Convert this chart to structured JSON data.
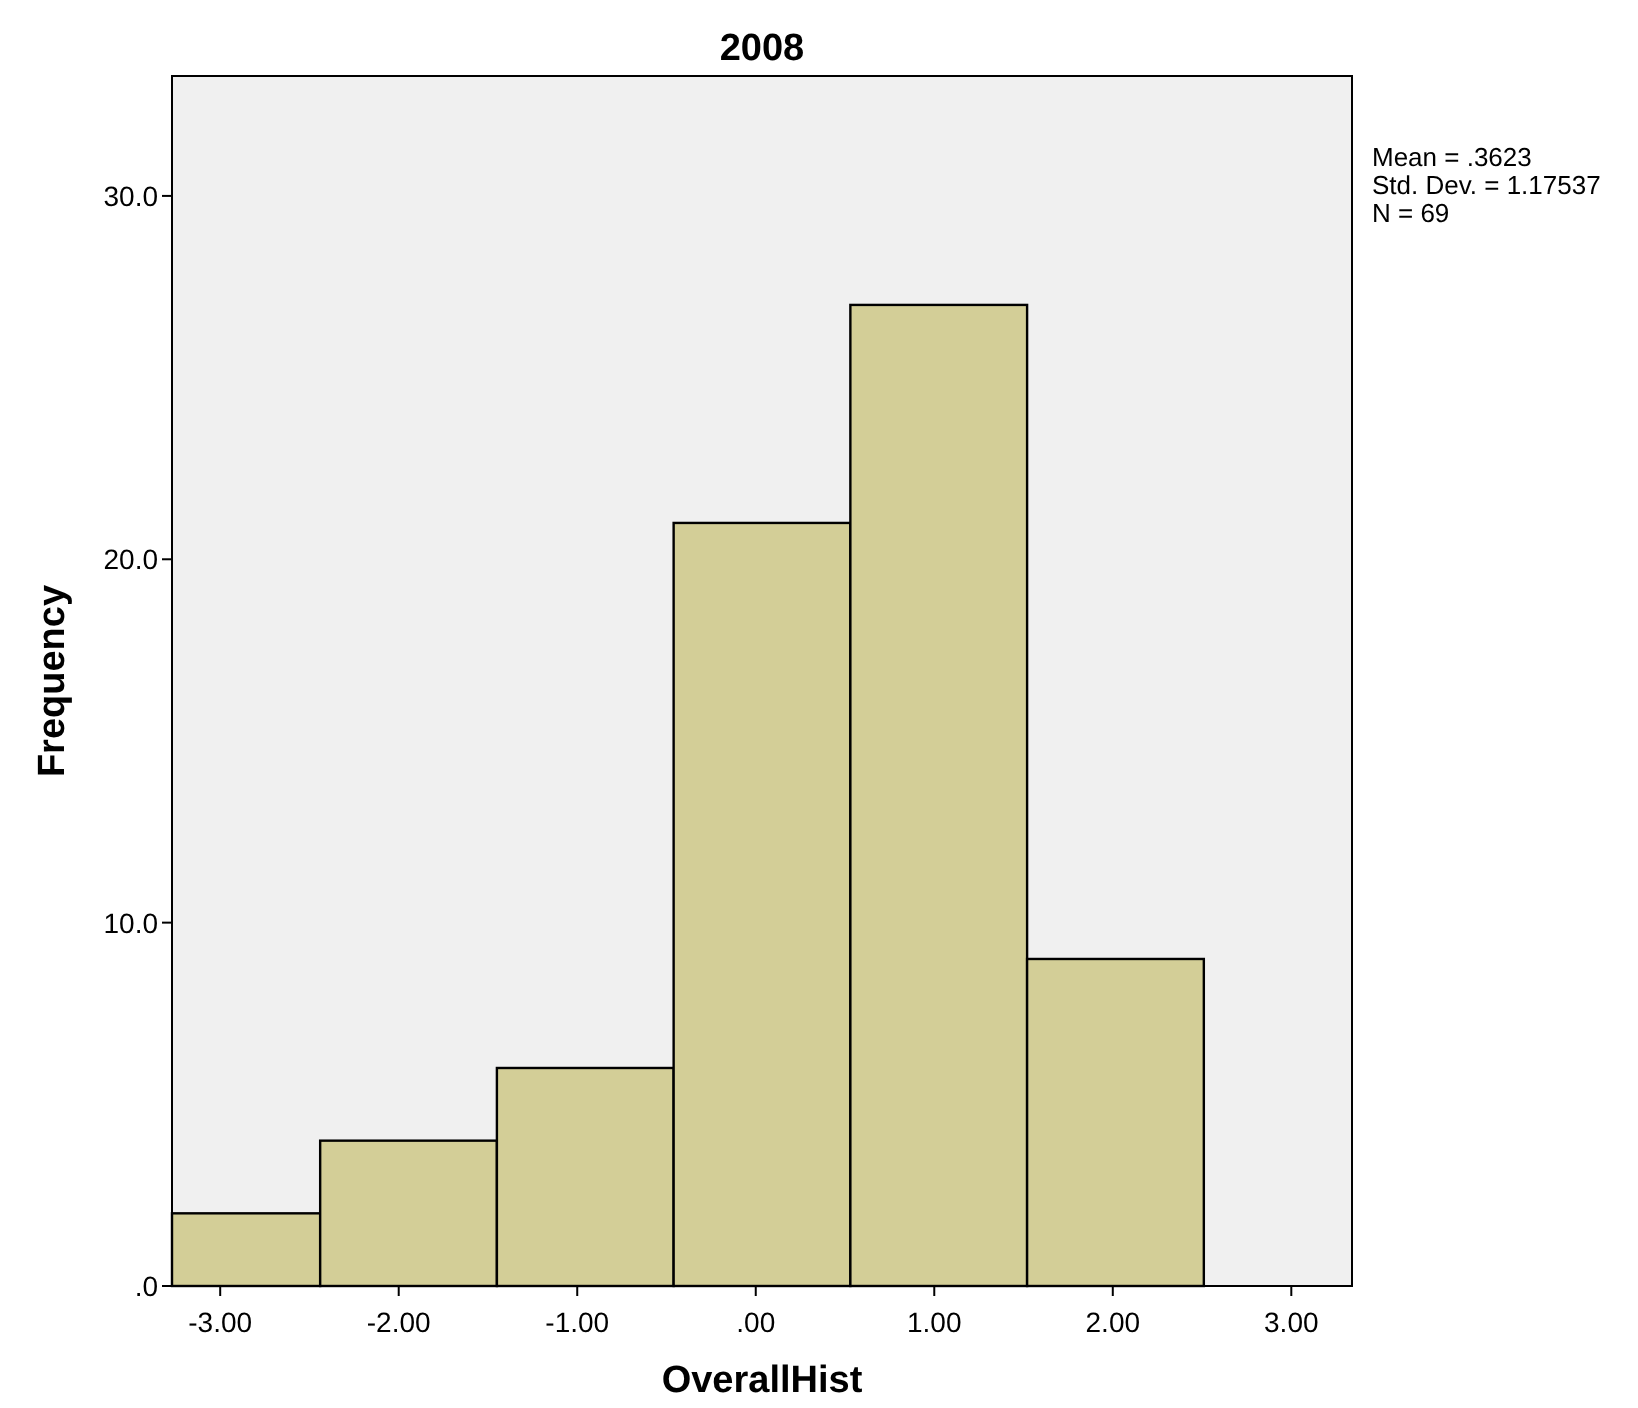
{
  "chart_data": {
    "type": "histogram",
    "title": "2008",
    "xlabel": "OverallHist",
    "ylabel": "Frequency",
    "bins": [
      -3.27,
      -2.44,
      -1.45,
      -0.46,
      0.53,
      1.52,
      2.51
    ],
    "values": [
      2,
      4,
      6,
      21,
      27,
      9
    ],
    "color": "#d3ce97",
    "xlim": [
      -3.27,
      3.34
    ],
    "xticks": [
      {
        "value": -3,
        "label": "-3.00"
      },
      {
        "value": -2,
        "label": "-2.00"
      },
      {
        "value": -1,
        "label": "-1.00"
      },
      {
        "value": 0,
        "label": ".00"
      },
      {
        "value": 1,
        "label": "1.00"
      },
      {
        "value": 2,
        "label": "2.00"
      },
      {
        "value": 3,
        "label": "3.00"
      }
    ],
    "ylim": [
      0,
      33.3
    ],
    "yticks": [
      {
        "value": 0,
        "label": ".0"
      },
      {
        "value": 10,
        "label": "10.0"
      },
      {
        "value": 20,
        "label": "20.0"
      },
      {
        "value": 30,
        "label": "30.0"
      }
    ],
    "annotations": [
      "Mean = .3623",
      "Std. Dev. = 1.17537",
      "N = 69"
    ],
    "grid": false
  }
}
